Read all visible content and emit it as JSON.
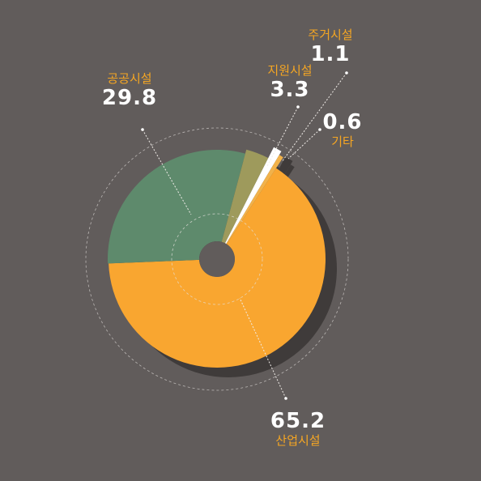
{
  "chart_data": {
    "type": "pie",
    "variant": "exploded-donut",
    "title": "",
    "slices": [
      {
        "name": "산업시설",
        "value": 65.2,
        "color": "#f9a630"
      },
      {
        "name": "공공시설",
        "value": 29.8,
        "color": "#5e8a6c"
      },
      {
        "name": "지원시설",
        "value": 3.3,
        "color": "#9e9a5c"
      },
      {
        "name": "주거시설",
        "value": 1.1,
        "color": "#ffffff"
      },
      {
        "name": "기타",
        "value": 0.6,
        "color": "#f2b24a"
      }
    ],
    "value_labels": [
      "65.2",
      "29.8",
      "3.3",
      "1.1",
      "0.6"
    ],
    "background": "#615c5b",
    "accent_text": "#f5a623"
  }
}
